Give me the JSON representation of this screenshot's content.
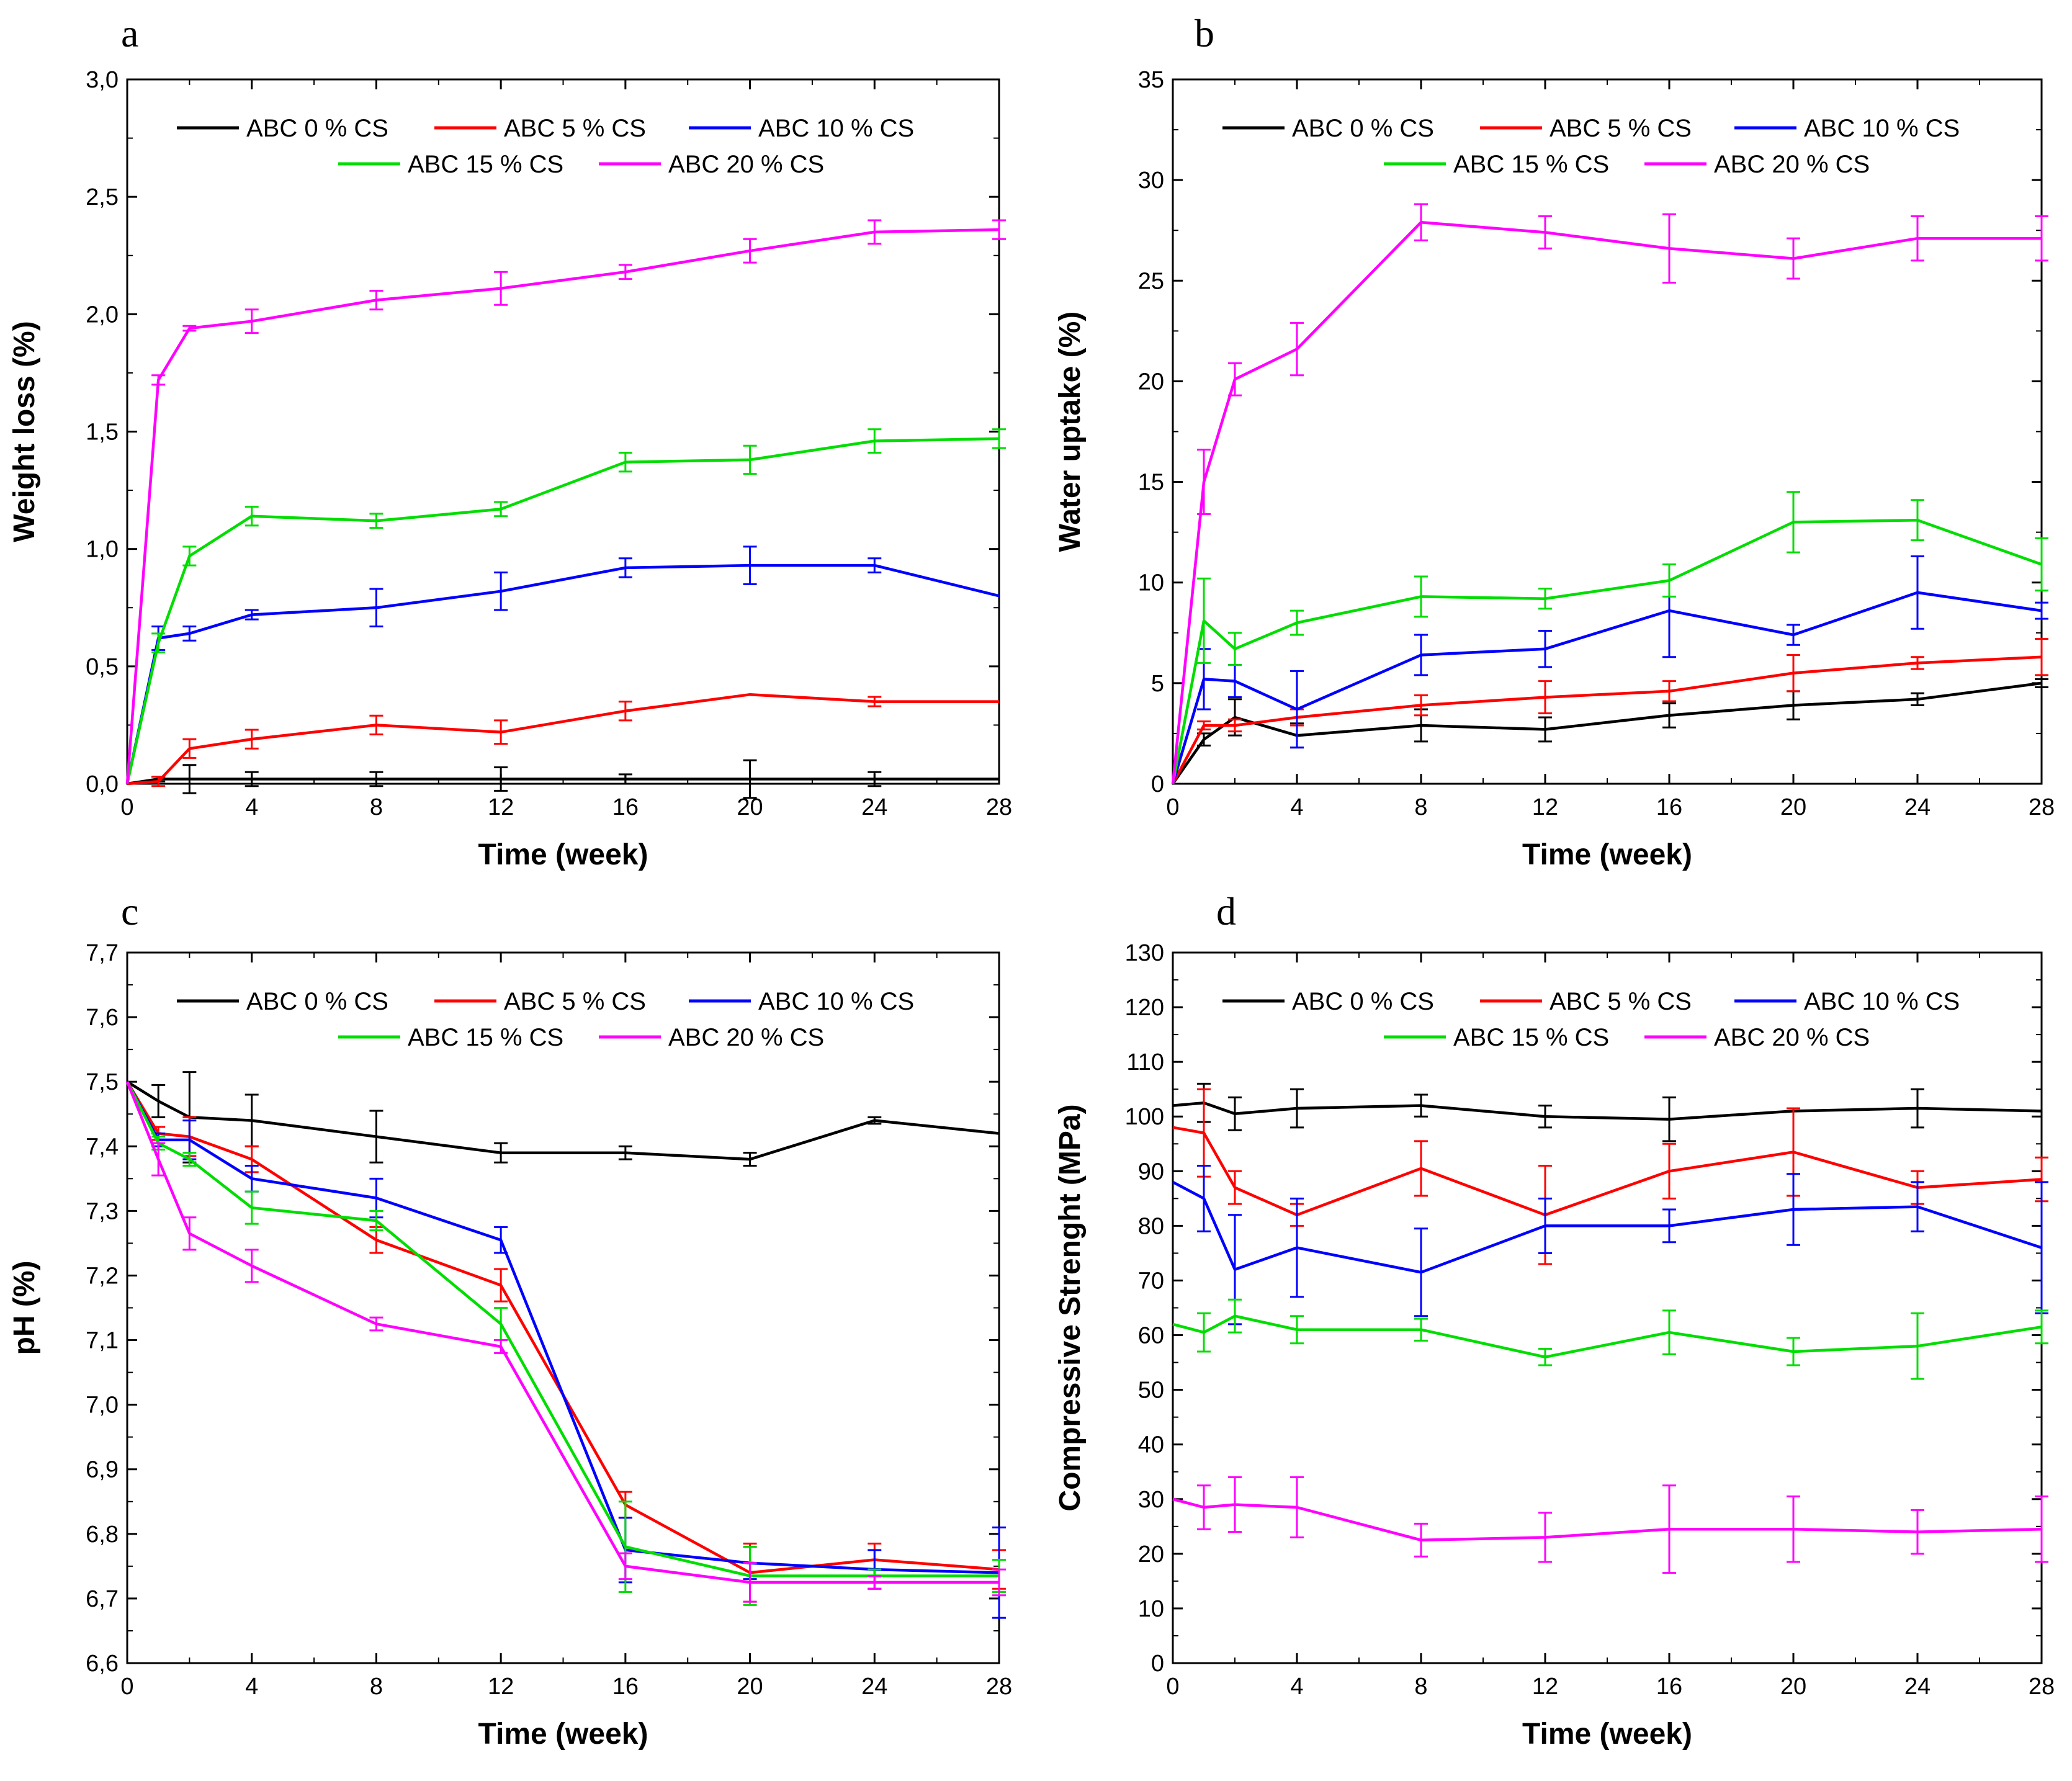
{
  "colors": {
    "ABC 0 % CS": "#000000",
    "ABC 5 % CS": "#ff0000",
    "ABC 10 % CS": "#0000ff",
    "ABC 15 % CS": "#00dd00",
    "ABC 20 % CS": "#ff00ff"
  },
  "chart_data": [
    {
      "id": "a",
      "panel_label": "a",
      "type": "line",
      "xlabel": "Time (week)",
      "ylabel": "Weight loss (%)",
      "xlim": [
        0,
        28
      ],
      "ylim": [
        0,
        3
      ],
      "xticks": [
        0,
        4,
        8,
        12,
        16,
        20,
        24,
        28
      ],
      "xtick_labels": [
        "0",
        "4",
        "8",
        "12",
        "16",
        "20",
        "24",
        "28"
      ],
      "yticks": [
        0,
        0.5,
        1,
        1.5,
        2,
        2.5,
        3
      ],
      "ytick_labels": [
        "0,0",
        "0,5",
        "1,0",
        "1,5",
        "2,0",
        "2,5",
        "3,0"
      ],
      "legend": [
        "ABC 0 % CS",
        "ABC 5 % CS",
        "ABC 10 % CS",
        "ABC 15 % CS",
        "ABC 20 % CS"
      ],
      "x": [
        0,
        1,
        2,
        4,
        8,
        12,
        16,
        20,
        24,
        28
      ],
      "series": [
        {
          "name": "ABC 0 % CS",
          "values": [
            0,
            0.02,
            0.02,
            0.02,
            0.02,
            0.02,
            0.02,
            0.02,
            0.02,
            0.02
          ],
          "errors": [
            0,
            0.01,
            0.06,
            0.03,
            0.03,
            0.05,
            0.02,
            0.08,
            0.03,
            0
          ]
        },
        {
          "name": "ABC 5 % CS",
          "values": [
            0,
            0.01,
            0.15,
            0.19,
            0.25,
            0.22,
            0.31,
            0.38,
            0.35,
            0.35
          ],
          "errors": [
            0,
            0.02,
            0.04,
            0.04,
            0.04,
            0.05,
            0.04,
            0,
            0.02,
            0
          ]
        },
        {
          "name": "ABC 10 % CS",
          "values": [
            0,
            0.62,
            0.64,
            0.72,
            0.75,
            0.82,
            0.92,
            0.93,
            0.93,
            0.8
          ],
          "errors": [
            0,
            0.05,
            0.03,
            0.02,
            0.08,
            0.08,
            0.04,
            0.08,
            0.03,
            0
          ]
        },
        {
          "name": "ABC 15 % CS",
          "values": [
            0,
            0.6,
            0.97,
            1.14,
            1.12,
            1.17,
            1.37,
            1.38,
            1.46,
            1.47
          ],
          "errors": [
            0,
            0.04,
            0.04,
            0.04,
            0.03,
            0.03,
            0.04,
            0.06,
            0.05,
            0.04
          ]
        },
        {
          "name": "ABC 20 % CS",
          "values": [
            0,
            1.72,
            1.94,
            1.97,
            2.06,
            2.11,
            2.18,
            2.27,
            2.35,
            2.36
          ],
          "errors": [
            0,
            0.02,
            0.01,
            0.05,
            0.04,
            0.07,
            0.03,
            0.05,
            0.05,
            0.04
          ]
        }
      ]
    },
    {
      "id": "b",
      "panel_label": "b",
      "type": "line",
      "xlabel": "Time (week)",
      "ylabel": "Water uptake (%)",
      "xlim": [
        0,
        28
      ],
      "ylim": [
        0,
        35
      ],
      "xticks": [
        0,
        4,
        8,
        12,
        16,
        20,
        24,
        28
      ],
      "xtick_labels": [
        "0",
        "4",
        "8",
        "12",
        "16",
        "20",
        "24",
        "28"
      ],
      "yticks": [
        0,
        5,
        10,
        15,
        20,
        25,
        30,
        35
      ],
      "ytick_labels": [
        "0",
        "5",
        "10",
        "15",
        "20",
        "25",
        "30",
        "35"
      ],
      "legend": [
        "ABC 0 % CS",
        "ABC 5 % CS",
        "ABC 10 % CS",
        "ABC 15 % CS",
        "ABC 20 % CS"
      ],
      "x": [
        0,
        1,
        2,
        4,
        8,
        12,
        16,
        20,
        24,
        28
      ],
      "series": [
        {
          "name": "ABC 0 % CS",
          "values": [
            0,
            2.2,
            3.3,
            2.4,
            2.9,
            2.7,
            3.4,
            3.9,
            4.2,
            5.0
          ],
          "errors": [
            0,
            0.3,
            0.9,
            0.6,
            0.8,
            0.6,
            0.6,
            0.7,
            0.3,
            0.2
          ]
        },
        {
          "name": "ABC 5 % CS",
          "values": [
            0,
            2.9,
            2.9,
            3.3,
            3.9,
            4.3,
            4.6,
            5.5,
            6.0,
            6.3
          ],
          "errors": [
            0,
            0.2,
            0.3,
            0.4,
            0.5,
            0.8,
            0.5,
            0.9,
            0.3,
            0.9
          ]
        },
        {
          "name": "ABC 10 % CS",
          "values": [
            0,
            5.2,
            5.1,
            3.7,
            6.4,
            6.7,
            8.6,
            7.4,
            9.5,
            8.6
          ],
          "errors": [
            0,
            1.5,
            0.8,
            1.9,
            1.0,
            0.9,
            2.3,
            0.5,
            1.8,
            0.4
          ]
        },
        {
          "name": "ABC 15 % CS",
          "values": [
            0,
            8.1,
            6.7,
            8.0,
            9.3,
            9.2,
            10.1,
            13.0,
            13.1,
            10.9
          ],
          "errors": [
            0,
            2.1,
            0.8,
            0.6,
            1.0,
            0.5,
            0.8,
            1.5,
            1.0,
            1.3
          ]
        },
        {
          "name": "ABC 20 % CS",
          "values": [
            0,
            15.0,
            20.1,
            21.6,
            27.9,
            27.4,
            26.6,
            26.1,
            27.1,
            27.1
          ],
          "errors": [
            0,
            1.6,
            0.8,
            1.3,
            0.9,
            0.8,
            1.7,
            1.0,
            1.1,
            1.1
          ]
        }
      ]
    },
    {
      "id": "c",
      "panel_label": "c",
      "type": "line",
      "xlabel": "Time (week)",
      "ylabel": "pH (%)",
      "xlim": [
        0,
        28
      ],
      "ylim": [
        6.6,
        7.7
      ],
      "xticks": [
        0,
        4,
        8,
        12,
        16,
        20,
        24,
        28
      ],
      "xtick_labels": [
        "0",
        "4",
        "8",
        "12",
        "16",
        "20",
        "24",
        "28"
      ],
      "yticks": [
        6.6,
        6.7,
        6.8,
        6.9,
        7.0,
        7.1,
        7.2,
        7.3,
        7.4,
        7.5,
        7.6,
        7.7
      ],
      "ytick_labels": [
        "6,6",
        "6,7",
        "6,8",
        "6,9",
        "7,0",
        "7,1",
        "7,2",
        "7,3",
        "7,4",
        "7,5",
        "7,6",
        "7,7"
      ],
      "legend": [
        "ABC 0 % CS",
        "ABC 5 % CS",
        "ABC 10 % CS",
        "ABC 15 % CS",
        "ABC 20 % CS"
      ],
      "x": [
        0,
        1,
        2,
        4,
        8,
        12,
        16,
        20,
        24,
        28
      ],
      "series": [
        {
          "name": "ABC 0 % CS",
          "values": [
            7.5,
            7.47,
            7.445,
            7.44,
            7.415,
            7.39,
            7.39,
            7.38,
            7.44,
            7.42
          ],
          "errors": [
            0,
            0.025,
            0.07,
            0.04,
            0.04,
            0.015,
            0.01,
            0.01,
            0.005,
            0
          ]
        },
        {
          "name": "ABC 5 % CS",
          "values": [
            7.5,
            7.42,
            7.415,
            7.38,
            7.255,
            7.185,
            6.845,
            6.74,
            6.76,
            6.745
          ],
          "errors": [
            0,
            0.01,
            0.03,
            0.02,
            0.02,
            0.025,
            0.02,
            0.045,
            0.025,
            0.03
          ]
        },
        {
          "name": "ABC 10 % CS",
          "values": [
            7.5,
            7.41,
            7.41,
            7.35,
            7.32,
            7.255,
            6.775,
            6.755,
            6.745,
            6.74
          ],
          "errors": [
            0,
            0.01,
            0.03,
            0.02,
            0.03,
            0.02,
            0.05,
            0.025,
            0.03,
            0.07
          ]
        },
        {
          "name": "ABC 15 % CS",
          "values": [
            7.5,
            7.405,
            7.38,
            7.305,
            7.285,
            7.125,
            6.78,
            6.735,
            6.735,
            6.735
          ],
          "errors": [
            0,
            0.01,
            0.01,
            0.025,
            0.015,
            0.025,
            0.07,
            0.045,
            0.01,
            0.025
          ]
        },
        {
          "name": "ABC 20 % CS",
          "values": [
            7.5,
            7.38,
            7.265,
            7.215,
            7.125,
            7.09,
            6.75,
            6.725,
            6.725,
            6.725
          ],
          "errors": [
            0,
            0.025,
            0.025,
            0.025,
            0.01,
            0.01,
            0.02,
            0.03,
            0.01,
            0.02
          ]
        }
      ]
    },
    {
      "id": "d",
      "panel_label": "d",
      "type": "line",
      "xlabel": "Time (week)",
      "ylabel": "Compressive Strenght (MPa)",
      "xlim": [
        0,
        28
      ],
      "ylim": [
        0,
        130
      ],
      "xticks": [
        0,
        4,
        8,
        12,
        16,
        20,
        24,
        28
      ],
      "xtick_labels": [
        "0",
        "4",
        "8",
        "12",
        "16",
        "20",
        "24",
        "28"
      ],
      "yticks": [
        0,
        10,
        20,
        30,
        40,
        50,
        60,
        70,
        80,
        90,
        100,
        110,
        120,
        130
      ],
      "ytick_labels": [
        "0",
        "10",
        "20",
        "30",
        "40",
        "50",
        "60",
        "70",
        "80",
        "90",
        "100",
        "110",
        "120",
        "130"
      ],
      "legend": [
        "ABC 0 % CS",
        "ABC 5 % CS",
        "ABC 10 % CS",
        "ABC 15 % CS",
        "ABC 20 % CS"
      ],
      "x": [
        0,
        1,
        2,
        4,
        8,
        12,
        16,
        20,
        24,
        28
      ],
      "series": [
        {
          "name": "ABC 0 % CS",
          "values": [
            102,
            102.5,
            100.5,
            101.5,
            102,
            100,
            99.5,
            101,
            101.5,
            101
          ],
          "errors": [
            0,
            3.5,
            3,
            3.5,
            2,
            2,
            4,
            0,
            3.5,
            0
          ]
        },
        {
          "name": "ABC 5 % CS",
          "values": [
            98,
            97,
            87,
            82,
            90.5,
            82,
            90,
            93.5,
            87,
            88.5
          ],
          "errors": [
            0,
            8,
            3,
            2,
            5,
            9,
            5,
            8,
            3,
            4
          ]
        },
        {
          "name": "ABC 10 % CS",
          "values": [
            88,
            85,
            72,
            76,
            71.5,
            80,
            80,
            83,
            83.5,
            76
          ],
          "errors": [
            0,
            6,
            10,
            9,
            8,
            5,
            3,
            6.5,
            4.5,
            12
          ]
        },
        {
          "name": "ABC 15 % CS",
          "values": [
            62,
            60.5,
            63.5,
            61,
            61,
            56,
            60.5,
            57,
            58,
            61.5
          ],
          "errors": [
            0,
            3.5,
            3,
            2.5,
            2,
            1.5,
            4,
            2.5,
            6,
            3
          ]
        },
        {
          "name": "ABC 20 % CS",
          "values": [
            30,
            28.5,
            29,
            28.5,
            22.5,
            23,
            24.5,
            24.5,
            24,
            24.5
          ],
          "errors": [
            0,
            4,
            5,
            5.5,
            3,
            4.5,
            8,
            6,
            4,
            6
          ]
        }
      ]
    }
  ]
}
